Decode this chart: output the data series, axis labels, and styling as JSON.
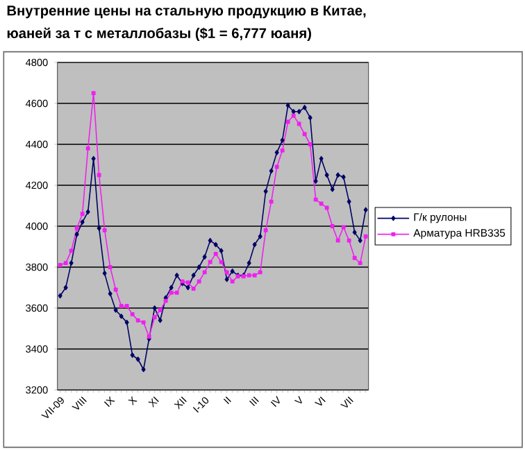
{
  "chart_data": {
    "type": "line",
    "title": "Внутренние цены на стальную продукцию в Китае,",
    "subtitle": "юаней за т с металлобазы ($1 = 6,777 юаня)",
    "categories": [
      "VII-09",
      null,
      null,
      null,
      "VIII",
      null,
      null,
      null,
      null,
      "IX",
      null,
      null,
      null,
      "X",
      null,
      null,
      null,
      "XI",
      null,
      null,
      null,
      null,
      "XII",
      null,
      null,
      null,
      "I-10",
      null,
      null,
      null,
      "II",
      null,
      null,
      null,
      null,
      "III",
      null,
      null,
      null,
      "IV",
      null,
      null,
      null,
      "V",
      null,
      null,
      null,
      "VI",
      null,
      null,
      null,
      null,
      "VII",
      null,
      null,
      null
    ],
    "series": [
      {
        "name": "Г/к рулоны",
        "color": "#000066",
        "marker": "diamond",
        "values": [
          3660,
          3700,
          3820,
          3960,
          4020,
          4070,
          4330,
          3990,
          3770,
          3670,
          3590,
          3560,
          3530,
          3370,
          3350,
          3300,
          3450,
          3600,
          3540,
          3650,
          3700,
          3760,
          3720,
          3700,
          3760,
          3800,
          3850,
          3930,
          3910,
          3880,
          3740,
          3780,
          3760,
          3760,
          3820,
          3910,
          3950,
          4170,
          4270,
          4360,
          4420,
          4590,
          4560,
          4560,
          4580,
          4530,
          4220,
          4330,
          4250,
          4180,
          4250,
          4240,
          4120,
          3970,
          3930,
          4080
        ]
      },
      {
        "name": "Арматура HRB335",
        "color": "#ee22ee",
        "marker": "square",
        "values": [
          3810,
          3820,
          3880,
          3990,
          4060,
          4380,
          4650,
          4250,
          3980,
          3800,
          3690,
          3610,
          3610,
          3570,
          3540,
          3530,
          3460,
          3555,
          3590,
          3635,
          3675,
          3675,
          3730,
          3725,
          3695,
          3730,
          3775,
          3825,
          3865,
          3825,
          3775,
          3730,
          3755,
          3755,
          3760,
          3760,
          3775,
          3980,
          4120,
          4290,
          4370,
          4510,
          4540,
          4500,
          4450,
          4400,
          4130,
          4110,
          4090,
          4000,
          3930,
          3995,
          3930,
          3845,
          3820,
          3950
        ]
      }
    ],
    "ylim": [
      3200,
      4800
    ],
    "yticks": [
      3200,
      3400,
      3600,
      3800,
      4000,
      4200,
      4400,
      4600,
      4800
    ],
    "grid": "y",
    "legend": "right",
    "line_style": "solid"
  }
}
